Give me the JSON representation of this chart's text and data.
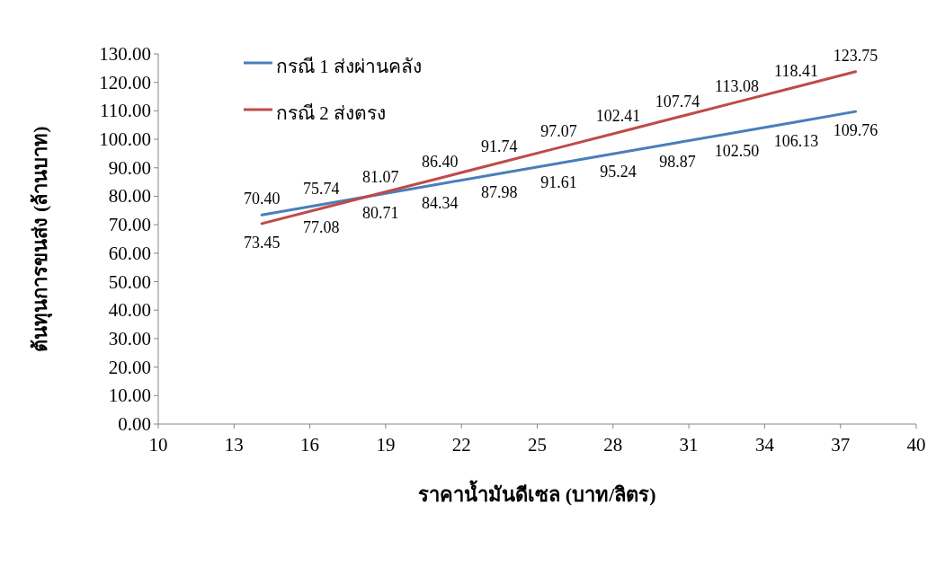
{
  "chart_data": {
    "type": "line",
    "xlabel": "ราคาน้ำมันดีเซล (บาท/ลิตร)",
    "ylabel": "ต้นทุนการขนส่ง (ล้านบาท)",
    "xlim": [
      10,
      40
    ],
    "xticks": [
      10,
      13,
      16,
      19,
      22,
      25,
      28,
      31,
      34,
      37,
      40
    ],
    "ylim": [
      0,
      130
    ],
    "yticks": [
      {
        "value": 0,
        "label": "0.00"
      },
      {
        "value": 10,
        "label": "10.00"
      },
      {
        "value": 20,
        "label": "20.00"
      },
      {
        "value": 30,
        "label": "30.00"
      },
      {
        "value": 40,
        "label": "40.00"
      },
      {
        "value": 50,
        "label": "50.00"
      },
      {
        "value": 60,
        "label": "60.00"
      },
      {
        "value": 70,
        "label": "70.00"
      },
      {
        "value": 80,
        "label": "80.00"
      },
      {
        "value": 90,
        "label": "90.00"
      },
      {
        "value": 100,
        "label": "100.00"
      },
      {
        "value": 110,
        "label": "110.00"
      },
      {
        "value": 120,
        "label": "120.00"
      },
      {
        "value": 130,
        "label": "130.00"
      }
    ],
    "x": [
      14.1,
      16.45,
      18.8,
      21.15,
      23.5,
      25.85,
      28.2,
      30.55,
      32.9,
      35.25,
      37.6
    ],
    "series": [
      {
        "name": "กรณี 1 ส่งผ่านคลัง",
        "color": "#4a7ebb",
        "values": [
          73.45,
          77.08,
          80.71,
          84.34,
          87.98,
          91.61,
          95.24,
          98.87,
          102.5,
          106.13,
          109.76
        ],
        "value_labels": [
          "73.45",
          "77.08",
          "80.71",
          "84.34",
          "87.98",
          "91.61",
          "95.24",
          "98.87",
          "102.50",
          "106.13",
          "109.76"
        ]
      },
      {
        "name": "กรณี 2 ส่งตรง",
        "color": "#be4b48",
        "values": [
          70.4,
          75.74,
          81.07,
          86.4,
          91.74,
          97.07,
          102.41,
          107.74,
          113.08,
          118.41,
          123.75
        ],
        "value_labels": [
          "70.40",
          "75.74",
          "81.07",
          "86.40",
          "91.74",
          "97.07",
          "102.41",
          "107.74",
          "113.08",
          "118.41",
          "123.75"
        ]
      }
    ],
    "legend": "top left",
    "grid": false,
    "marker": "none",
    "line_style": "solid"
  }
}
